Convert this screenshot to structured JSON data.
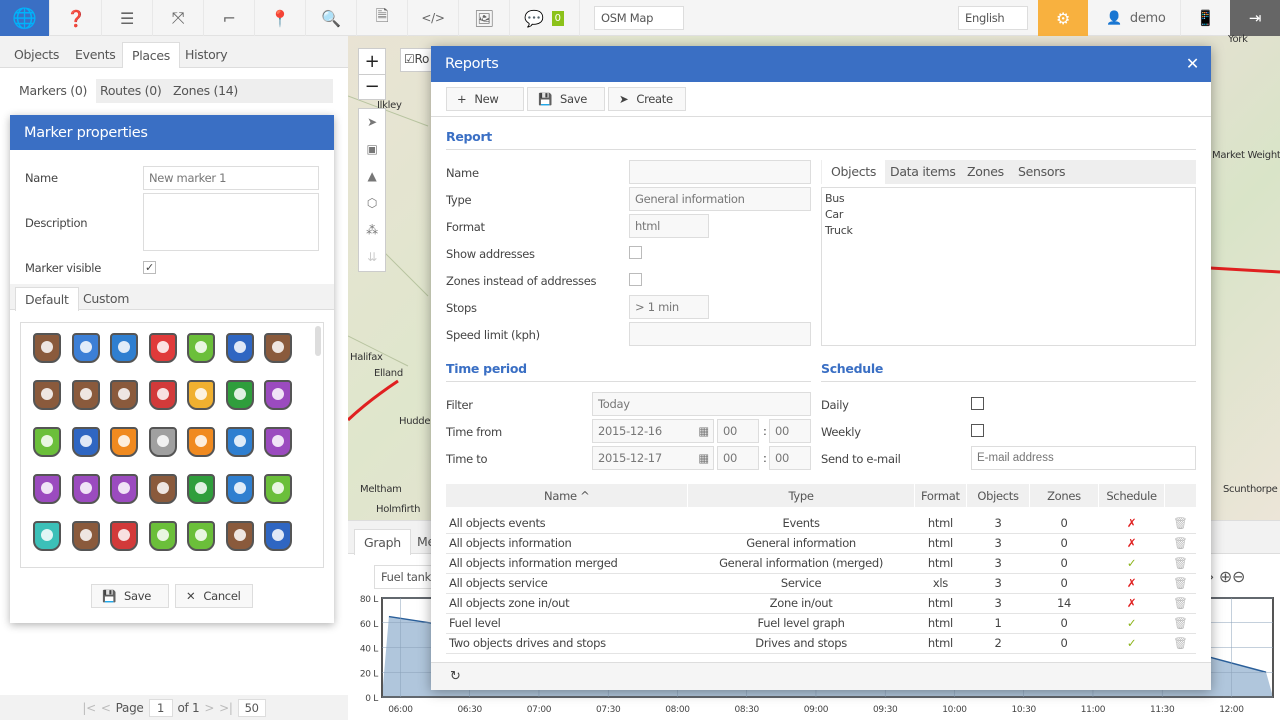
{
  "topbar": {
    "icons": [
      "globe-icon",
      "help-icon",
      "settings-sliders-icon",
      "fullscreen-icon",
      "ruler-icon",
      "map-pin-icon",
      "search-icon",
      "report-icon",
      "code-icon",
      "image-icon",
      "chat-icon"
    ],
    "chat_count": "0",
    "map_select": "OSM Map",
    "language": "English",
    "user": "demo",
    "colors": {
      "brand": "#3a6fc4",
      "gear": "#f8b13f",
      "logout": "#666666",
      "badge": "#8cc21a"
    }
  },
  "left": {
    "tabs": [
      "Objects",
      "Events",
      "Places",
      "History"
    ],
    "subtabs": [
      "Markers (0)",
      "Routes (0)",
      "Zones (14)"
    ],
    "marker": {
      "title": "Marker properties",
      "name_label": "Name",
      "name_value": "New marker 1",
      "desc_label": "Description",
      "visible_label": "Marker visible",
      "icon_tabs": [
        "Default",
        "Custom"
      ],
      "save": "Save",
      "cancel": "Cancel",
      "icon_colors": [
        "#8a5a3c",
        "#3c7fd6",
        "#2f7fd0",
        "#e03a3a",
        "#6bbf3a",
        "#2f66c2",
        "#8a5a3c",
        "#8a5a3c",
        "#8a5a3c",
        "#8a5a3c",
        "#d23a3a",
        "#f0b030",
        "#2f9e3c",
        "#9b4bbf",
        "#6bbf3a",
        "#2f66c2",
        "#f08a20",
        "#a0a0a0",
        "#f08a20",
        "#2f7fd0",
        "#9b4bbf",
        "#9b4bbf",
        "#9b4bbf",
        "#9b4bbf",
        "#8a5a3c",
        "#2f9e3c",
        "#2f7fd0",
        "#6bbf3a",
        "#3cc0b8",
        "#8a5a3c",
        "#d23a3a",
        "#6bbf3a",
        "#6bbf3a",
        "#8a5a3c",
        "#2f66c2"
      ]
    },
    "pager": {
      "page_label": "Page",
      "page": "1",
      "of": "of 1",
      "per_page": "50"
    }
  },
  "map": {
    "places": [
      "Ilkley",
      "Halifax",
      "Elland",
      "Meltham",
      "Holmfirth",
      "York",
      "Market Weighton",
      "Scunthorpe",
      "Huddersfield"
    ],
    "layer_label": "Ro"
  },
  "bottom": {
    "tabs": [
      "Graph",
      "Me"
    ],
    "sensor": "Fuel tank",
    "chart_data": {
      "type": "area",
      "ylim": [
        0,
        80
      ],
      "yticks": [
        "80 L",
        "60 L",
        "40 L",
        "20 L",
        "0 L"
      ],
      "xticks": [
        "06:00",
        "06:30",
        "07:00",
        "07:30",
        "08:00",
        "08:30",
        "09:00",
        "09:30",
        "10:00",
        "10:30",
        "11:00",
        "11:30",
        "12:00"
      ],
      "series": [
        {
          "x": [
            "05:55",
            "06:30",
            "11:45",
            "12:15"
          ],
          "y": [
            65,
            55,
            35,
            20
          ]
        }
      ]
    }
  },
  "reports": {
    "title": "Reports",
    "toolbar": {
      "new": "New",
      "save": "Save",
      "create": "Create"
    },
    "report_section": "Report",
    "name_label": "Name",
    "type_label": "Type",
    "type_value": "General information",
    "format_label": "Format",
    "format_value": "html",
    "show_addresses": "Show addresses",
    "zones_instead": "Zones instead of addresses",
    "stops_label": "Stops",
    "stops_value": "> 1 min",
    "speed_label": "Speed limit (kph)",
    "obj_tabs": [
      "Objects",
      "Data items",
      "Zones",
      "Sensors"
    ],
    "objects": [
      "Bus",
      "Car",
      "Truck"
    ],
    "time_section": "Time period",
    "filter_label": "Filter",
    "filter_value": "Today",
    "from_label": "Time from",
    "from_date": "2015-12-16",
    "from_h": "00",
    "from_m": "00",
    "to_label": "Time to",
    "to_date": "2015-12-17",
    "to_h": "00",
    "to_m": "00",
    "schedule_section": "Schedule",
    "daily": "Daily",
    "weekly": "Weekly",
    "email_label": "Send to e-mail",
    "email_placeholder": "E-mail address",
    "columns": [
      "Name ^",
      "Type",
      "Format",
      "Objects",
      "Zones",
      "Schedule"
    ],
    "rows": [
      {
        "name": "All objects events",
        "type": "Events",
        "format": "html",
        "objects": "3",
        "zones": "0",
        "schedule": false
      },
      {
        "name": "All objects information",
        "type": "General information",
        "format": "html",
        "objects": "3",
        "zones": "0",
        "schedule": false
      },
      {
        "name": "All objects information merged",
        "type": "General information (merged)",
        "format": "html",
        "objects": "3",
        "zones": "0",
        "schedule": true
      },
      {
        "name": "All objects service",
        "type": "Service",
        "format": "xls",
        "objects": "3",
        "zones": "0",
        "schedule": false
      },
      {
        "name": "All objects zone in/out",
        "type": "Zone in/out",
        "format": "html",
        "objects": "3",
        "zones": "14",
        "schedule": false
      },
      {
        "name": "Fuel level",
        "type": "Fuel level graph",
        "format": "html",
        "objects": "1",
        "zones": "0",
        "schedule": true
      },
      {
        "name": "Two objects drives and stops",
        "type": "Drives and stops",
        "format": "html",
        "objects": "2",
        "zones": "0",
        "schedule": true
      }
    ]
  }
}
